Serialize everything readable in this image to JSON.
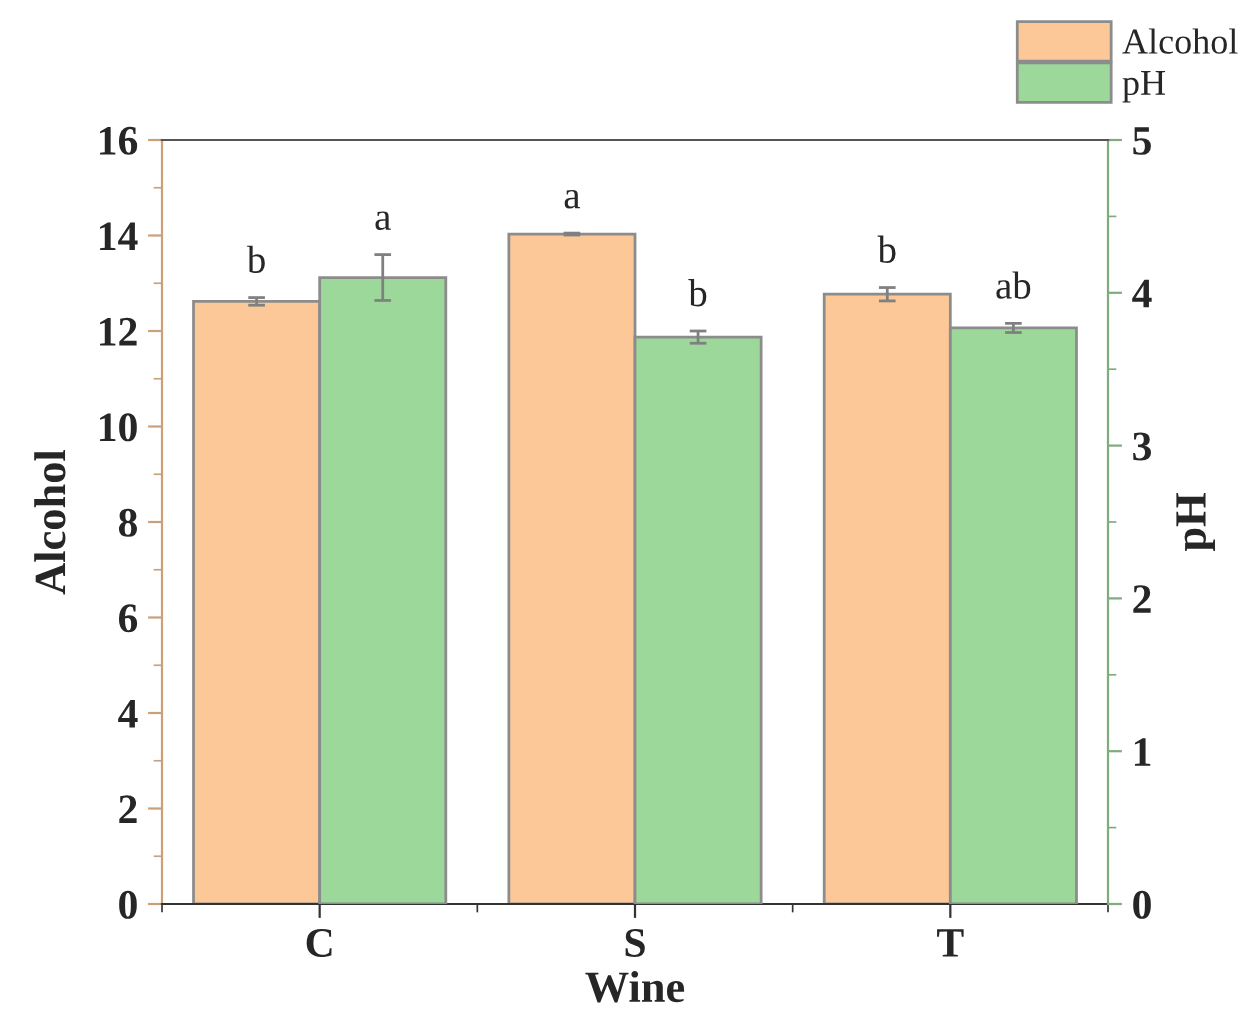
{
  "chart_data": {
    "type": "bar",
    "xlabel": "Wine",
    "ylabel": "Alcohol",
    "y2label": "pH",
    "categories": [
      "C",
      "S",
      "T"
    ],
    "series": [
      {
        "name": "Alcohol",
        "color": "#fdc897",
        "values": [
          12.62,
          14.03,
          12.77
        ],
        "errors": [
          0.08,
          0.02,
          0.14
        ],
        "value_labels": [
          "b",
          "a",
          "b"
        ]
      },
      {
        "name": "pH",
        "color": "#9dd89b",
        "axis": "y2",
        "values": [
          4.1,
          3.71,
          3.77
        ],
        "errors": [
          0.15,
          0.04,
          0.03
        ],
        "value_labels": [
          "a",
          "b",
          "ab"
        ]
      }
    ],
    "ylim": [
      0,
      16
    ],
    "yticks": [
      0,
      2,
      4,
      6,
      8,
      10,
      12,
      14,
      16
    ],
    "y2lim": [
      0,
      5
    ],
    "y2ticks": [
      0,
      1,
      2,
      3,
      4,
      5
    ],
    "legend": "top right",
    "grid": false
  }
}
